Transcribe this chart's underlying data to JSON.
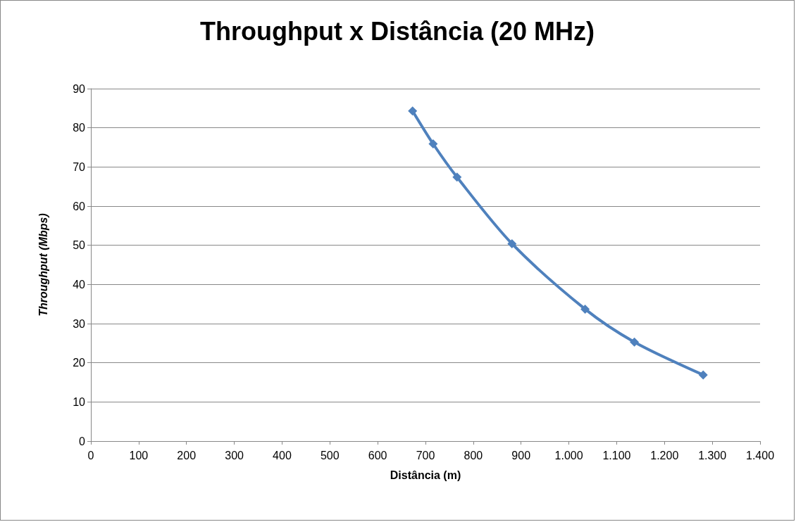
{
  "chart_data": {
    "type": "line",
    "title": "Throughput x Distância (20 MHz)",
    "xlabel": "Distância (m)",
    "ylabel": "Throughput (Mbps)",
    "x": [
      673,
      716,
      766,
      881,
      1034,
      1137,
      1281
    ],
    "series": [
      {
        "color": "#4f81bd",
        "values": [
          84.3,
          75.9,
          67.4,
          50.4,
          33.7,
          25.3,
          16.9
        ]
      }
    ],
    "xlim": [
      0,
      1400
    ],
    "xticks": [
      0,
      100,
      200,
      300,
      400,
      500,
      600,
      700,
      800,
      900,
      {
        "value": 1000,
        "label": "1.000"
      },
      {
        "value": 1100,
        "label": "1.100"
      },
      {
        "value": 1200,
        "label": "1.200"
      },
      {
        "value": 1300,
        "label": "1.300"
      },
      {
        "value": 1400,
        "label": "1.400"
      }
    ],
    "ylim": [
      0,
      90
    ],
    "yticks": [
      0,
      10,
      20,
      30,
      40,
      50,
      60,
      70,
      80,
      90
    ],
    "grid": "y",
    "marker": "diamond",
    "line_style": "solid"
  }
}
